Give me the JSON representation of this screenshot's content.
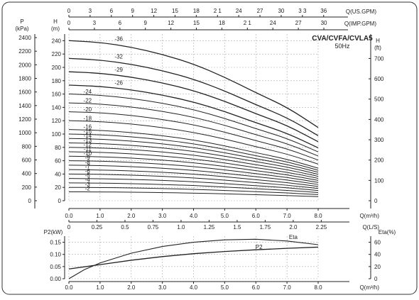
{
  "chart_data": [
    {
      "type": "line",
      "title": "CVA/CVFA/CVLA5",
      "subtitle": "50Hz",
      "xlabel": "Q(m³/h)",
      "ylabel_head_m": "H\n(m)",
      "ylabel_pressure": "P\n(kPa)",
      "ylabel_head_ft": "H\n(ft)",
      "top_axis_us_label": "Q(US.GPM)",
      "top_axis_imp_label": "Q(IMP.GPM)",
      "secondary_x_label": "Q(L/S)",
      "xlim": [
        0,
        8
      ],
      "ylim_head_m": [
        0,
        250
      ],
      "x_ticks": [
        "0.0",
        "1.0",
        "2.0",
        "3.0",
        "4.0",
        "5.0",
        "6.0",
        "7.0",
        "8.0"
      ],
      "ls_ticks": [
        "0",
        "0.25",
        "0.5",
        "0.75",
        "1.0",
        "1.25",
        "1.5",
        "1.75",
        "2.0",
        "2.25"
      ],
      "us_ticks": [
        "0",
        "3",
        "6",
        "9",
        "12",
        "15",
        "18",
        "2 1",
        "24",
        "27",
        "30",
        "3 3",
        "36"
      ],
      "imp_ticks": [
        "0",
        "3",
        "6",
        "9",
        "12",
        "15",
        "18",
        "2 1",
        "24",
        "27",
        "30"
      ],
      "head_m_ticks": [
        "0",
        "20",
        "40",
        "60",
        "80",
        "100",
        "120",
        "140",
        "160",
        "180",
        "200",
        "220",
        "240"
      ],
      "pressure_ticks": [
        "0",
        "200",
        "400",
        "600",
        "800",
        "1000",
        "1200",
        "1400",
        "1600",
        "1800",
        "2000",
        "2200",
        "2400"
      ],
      "head_ft_ticks": [
        "0",
        "100",
        "200",
        "300",
        "400",
        "500",
        "600",
        "700"
      ],
      "stages": [
        2,
        3,
        4,
        5,
        6,
        7,
        8,
        9,
        10,
        11,
        12,
        13,
        14,
        15,
        16,
        18,
        20,
        22,
        24,
        26,
        29,
        32,
        36
      ],
      "stage_labels": [
        "-2",
        "-3",
        "-4",
        "-5",
        "-6",
        "-7",
        "-8",
        "-9",
        "-10",
        "-11",
        "-12",
        "-13",
        "-14",
        "-15",
        "-16",
        "-18",
        "-20",
        "-22",
        "-24",
        "-26",
        "-29",
        "-32",
        "-36"
      ],
      "head_per_stage_curve": {
        "q": [
          0,
          1,
          2,
          3,
          4,
          5,
          6,
          7,
          8
        ],
        "h": [
          6.67,
          6.6,
          6.4,
          6.1,
          5.7,
          5.15,
          4.5,
          3.9,
          3.05
        ]
      }
    },
    {
      "type": "line",
      "xlabel": "Q(m³/h)",
      "xlim": [
        0,
        8
      ],
      "ylabel_power": "P2(kW)",
      "ylabel_eff": "Eta(%)",
      "x_ticks": [
        "0.0",
        "1.0",
        "2.0",
        "3.0",
        "4.0",
        "5.0",
        "6.0",
        "7.0",
        "8.0"
      ],
      "power_ticks": [
        "0.00",
        "0.05",
        "0.10",
        "0.15"
      ],
      "eff_ticks": [
        "0",
        "20",
        "40",
        "60"
      ],
      "ylim_power": [
        0,
        0.175
      ],
      "ylim_eff": [
        0,
        70
      ],
      "series": [
        {
          "name": "P2",
          "q": [
            0,
            1,
            2,
            3,
            4,
            5,
            6,
            7,
            8
          ],
          "power_kw": [
            0.04,
            0.058,
            0.076,
            0.091,
            0.103,
            0.112,
            0.119,
            0.125,
            0.13
          ]
        },
        {
          "name": "Eta",
          "q": [
            0,
            0.5,
            1,
            2,
            3,
            4,
            5,
            6,
            7,
            8
          ],
          "eff_pct": [
            0,
            15,
            26,
            42,
            53,
            60,
            64,
            65,
            62,
            56
          ]
        }
      ]
    }
  ]
}
